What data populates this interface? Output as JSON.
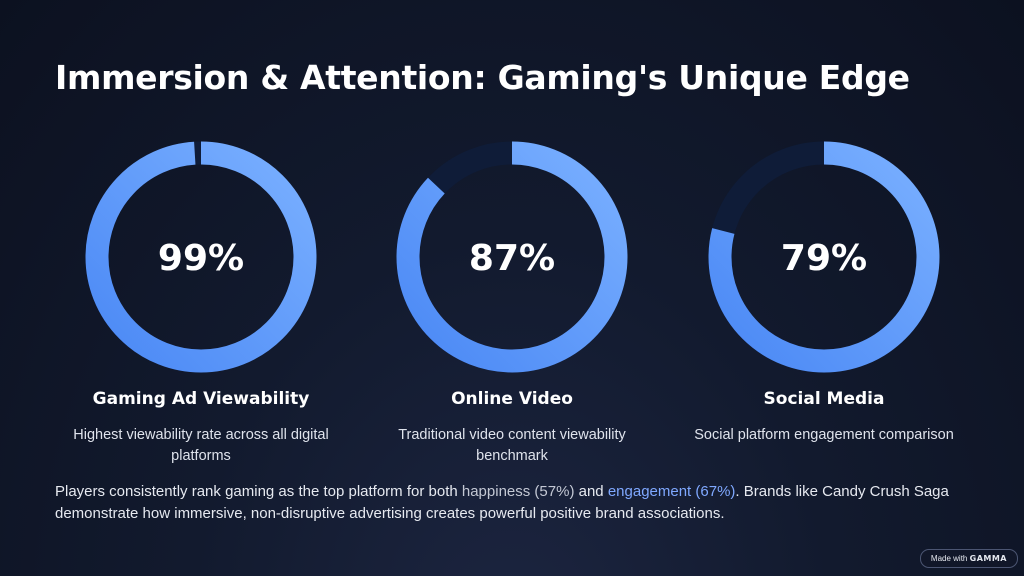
{
  "title": "Immersion & Attention: Gaming's Unique Edge",
  "colors": {
    "ring_fill_start": "#4a88f5",
    "ring_fill_end": "#7ab0ff",
    "ring_track": "#0f1c38",
    "background": "#0d1322",
    "highlight_engagement": "#7fa8ff"
  },
  "chart_data": [
    {
      "type": "pie",
      "style": "donut",
      "value": 99,
      "max": 100,
      "center_label": "99%",
      "heading": "Gaming Ad Viewability",
      "description": "Highest viewability rate across all digital platforms"
    },
    {
      "type": "pie",
      "style": "donut",
      "value": 87,
      "max": 100,
      "center_label": "87%",
      "heading": "Online Video",
      "description": "Traditional video content viewability benchmark"
    },
    {
      "type": "pie",
      "style": "donut",
      "value": 79,
      "max": 100,
      "center_label": "79%",
      "heading": "Social Media",
      "description": "Social platform engagement comparison"
    }
  ],
  "body": {
    "part1": "Players consistently rank gaming as the top platform for both ",
    "happiness": "happiness (57%)",
    "part2": " and ",
    "engagement": "engagement (67%)",
    "part3": ". Brands like Candy Crush Saga demonstrate how immersive, non-disruptive advertising creates powerful positive brand associations."
  },
  "badge": {
    "prefix": "Made with",
    "brand": "GAMMA"
  }
}
